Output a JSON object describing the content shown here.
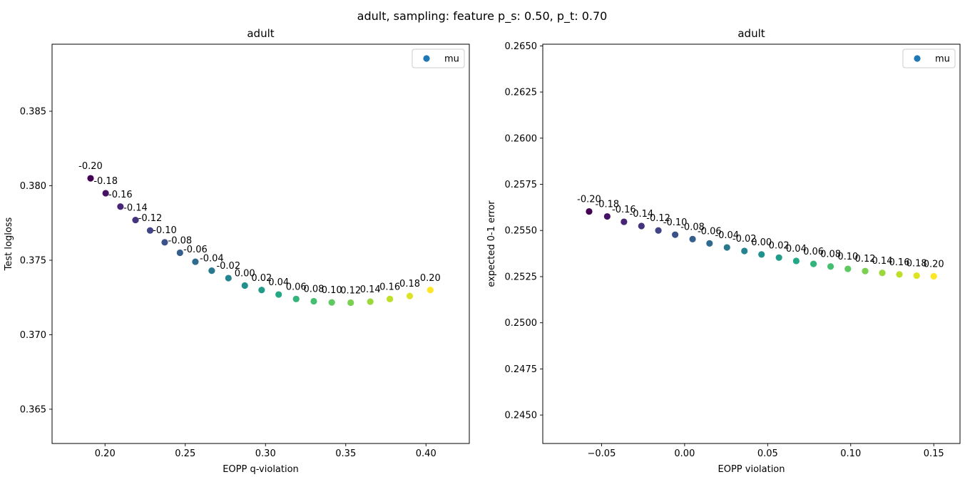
{
  "figure": {
    "suptitle": "adult, sampling: feature p_s: 0.50, p_t: 0.70"
  },
  "chart_data": [
    {
      "type": "scatter",
      "title": "adult",
      "xlabel": "EOPP q-violation",
      "ylabel": "Test logloss",
      "xlim": [
        0.167,
        0.427
      ],
      "ylim": [
        0.3627,
        0.3895
      ],
      "xticks": [
        0.2,
        0.25,
        0.3,
        0.35,
        0.4
      ],
      "xtick_labels": [
        "0.20",
        "0.25",
        "0.30",
        "0.35",
        "0.40"
      ],
      "yticks": [
        0.365,
        0.37,
        0.375,
        0.38,
        0.385
      ],
      "ytick_labels": [
        "0.365",
        "0.370",
        "0.375",
        "0.380",
        "0.385"
      ],
      "grid": false,
      "legend": {
        "placement": "top-right",
        "entries": [
          "mu"
        ]
      },
      "series": [
        {
          "name": "mu",
          "colormap": "viridis",
          "x": [
            0.191,
            0.2004,
            0.2096,
            0.219,
            0.2281,
            0.2372,
            0.2467,
            0.2563,
            0.2665,
            0.2769,
            0.2871,
            0.2976,
            0.3082,
            0.3191,
            0.3301,
            0.3413,
            0.3531,
            0.3653,
            0.3775,
            0.3899,
            0.4027
          ],
          "y": [
            0.3805,
            0.3795,
            0.3786,
            0.3777,
            0.377,
            0.3762,
            0.3755,
            0.3749,
            0.3743,
            0.3738,
            0.3733,
            0.373,
            0.3727,
            0.3724,
            0.37225,
            0.37217,
            0.37215,
            0.37222,
            0.3724,
            0.3726,
            0.373
          ],
          "labels": [
            "-0.20",
            "-0.18",
            "-0.16",
            "-0.14",
            "-0.12",
            "-0.10",
            "-0.08",
            "-0.06",
            "-0.04",
            "-0.02",
            "0.00",
            "0.02",
            "0.04",
            "0.06",
            "0.08",
            "0.10",
            "0.12",
            "0.14",
            "0.16",
            "0.18",
            "0.20"
          ]
        }
      ]
    },
    {
      "type": "scatter",
      "title": "adult",
      "xlabel": "EOPP violation",
      "ylabel": "expected 0-1 error",
      "xlim": [
        -0.0854,
        0.1658
      ],
      "ylim": [
        0.24346,
        0.26509
      ],
      "xticks": [
        -0.05,
        0.0,
        0.05,
        0.1,
        0.15
      ],
      "xtick_labels": [
        "−0.05",
        "0.00",
        "0.05",
        "0.10",
        "0.15"
      ],
      "yticks": [
        0.245,
        0.2475,
        0.25,
        0.2525,
        0.255,
        0.2575,
        0.26,
        0.2625,
        0.265
      ],
      "ytick_labels": [
        "0.2450",
        "0.2475",
        "0.2500",
        "0.2525",
        "0.2550",
        "0.2575",
        "0.2600",
        "0.2625",
        "0.2650"
      ],
      "grid": false,
      "legend": {
        "placement": "top-right",
        "entries": [
          "mu"
        ]
      },
      "series": [
        {
          "name": "mu",
          "colormap": "viridis",
          "x": [
            -0.0575,
            -0.0466,
            -0.0365,
            -0.026,
            -0.0158,
            -0.0057,
            0.0048,
            0.015,
            0.0255,
            0.036,
            0.0463,
            0.0568,
            0.0672,
            0.0776,
            0.0879,
            0.0983,
            0.1087,
            0.119,
            0.1293,
            0.1397,
            0.15
          ],
          "y": [
            0.25603,
            0.25576,
            0.25547,
            0.25524,
            0.255,
            0.25477,
            0.25453,
            0.2543,
            0.25408,
            0.25389,
            0.2537,
            0.25353,
            0.25335,
            0.25319,
            0.25305,
            0.25292,
            0.2528,
            0.2527,
            0.25262,
            0.25255,
            0.25252
          ],
          "labels": [
            "-0.20",
            "-0.18",
            "-0.16",
            "-0.14",
            "-0.12",
            "-0.10",
            "-0.08",
            "-0.06",
            "-0.04",
            "-0.02",
            "0.00",
            "0.02",
            "0.04",
            "0.06",
            "0.08",
            "0.10",
            "0.12",
            "0.14",
            "0.16",
            "0.18",
            "0.20"
          ]
        }
      ]
    }
  ]
}
